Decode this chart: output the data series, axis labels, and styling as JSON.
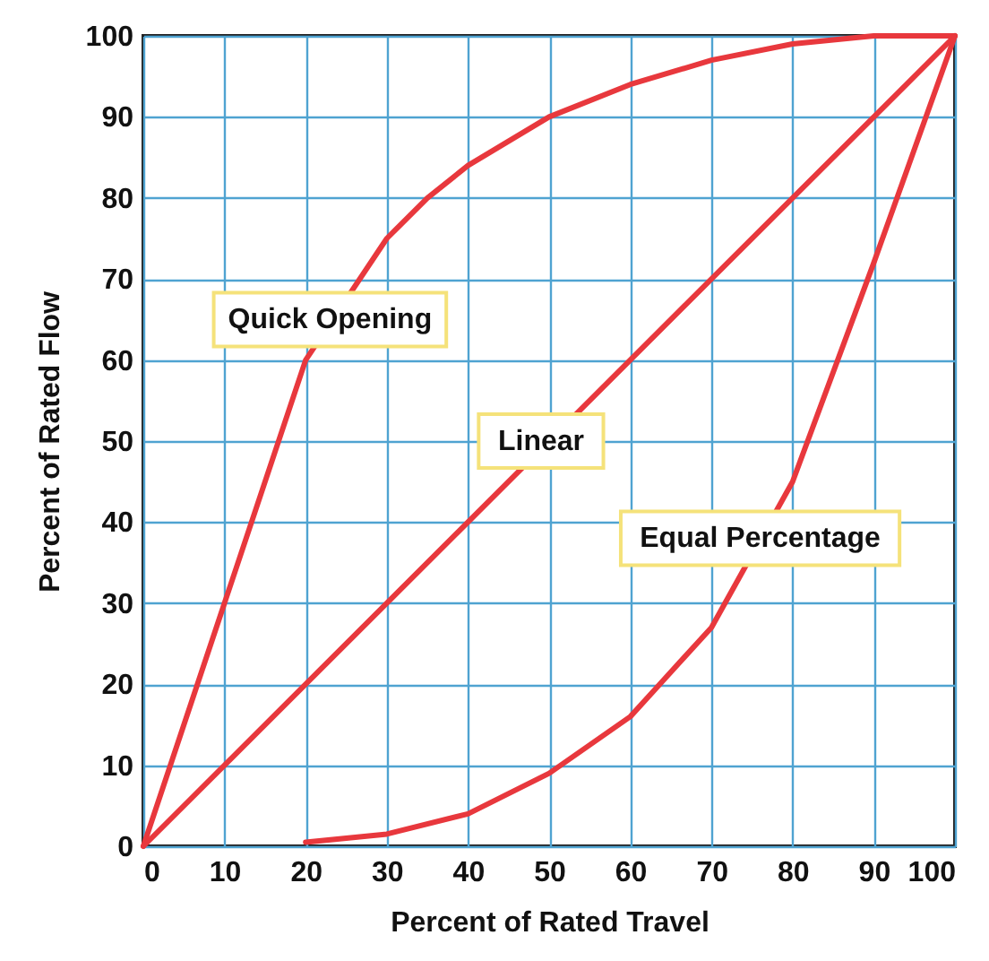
{
  "chart_data": {
    "type": "line",
    "xlabel": "Percent of Rated Travel",
    "ylabel": "Percent of Rated Flow",
    "xlim": [
      0,
      100
    ],
    "ylim": [
      0,
      100
    ],
    "xticks": [
      0,
      10,
      20,
      30,
      40,
      50,
      60,
      70,
      80,
      90,
      100
    ],
    "yticks": [
      0,
      10,
      20,
      30,
      40,
      50,
      60,
      70,
      80,
      90,
      100
    ],
    "grid": true,
    "marker": "none",
    "line_style": "solid",
    "series": [
      {
        "color": "#e8383d",
        "x": [
          0,
          10,
          20,
          30,
          35,
          40,
          50,
          60,
          70,
          80,
          90,
          100
        ],
        "values": [
          0,
          30,
          60,
          75,
          80,
          84,
          90,
          94,
          97,
          99,
          100,
          100
        ]
      },
      {
        "color": "#e8383d",
        "x": [
          0,
          100
        ],
        "values": [
          0,
          100
        ]
      },
      {
        "color": "#e8383d",
        "x": [
          20,
          30,
          40,
          50,
          60,
          70,
          80,
          90,
          100
        ],
        "values": [
          0.5,
          1.5,
          4,
          9,
          16,
          27,
          45,
          72,
          100
        ]
      }
    ],
    "annotations": [
      {
        "text": "Quick Opening",
        "x": 23,
        "y": 65
      },
      {
        "text": "Linear",
        "x": 49,
        "y": 50
      },
      {
        "text": "Equal Percentage",
        "x": 76,
        "y": 38
      }
    ]
  }
}
